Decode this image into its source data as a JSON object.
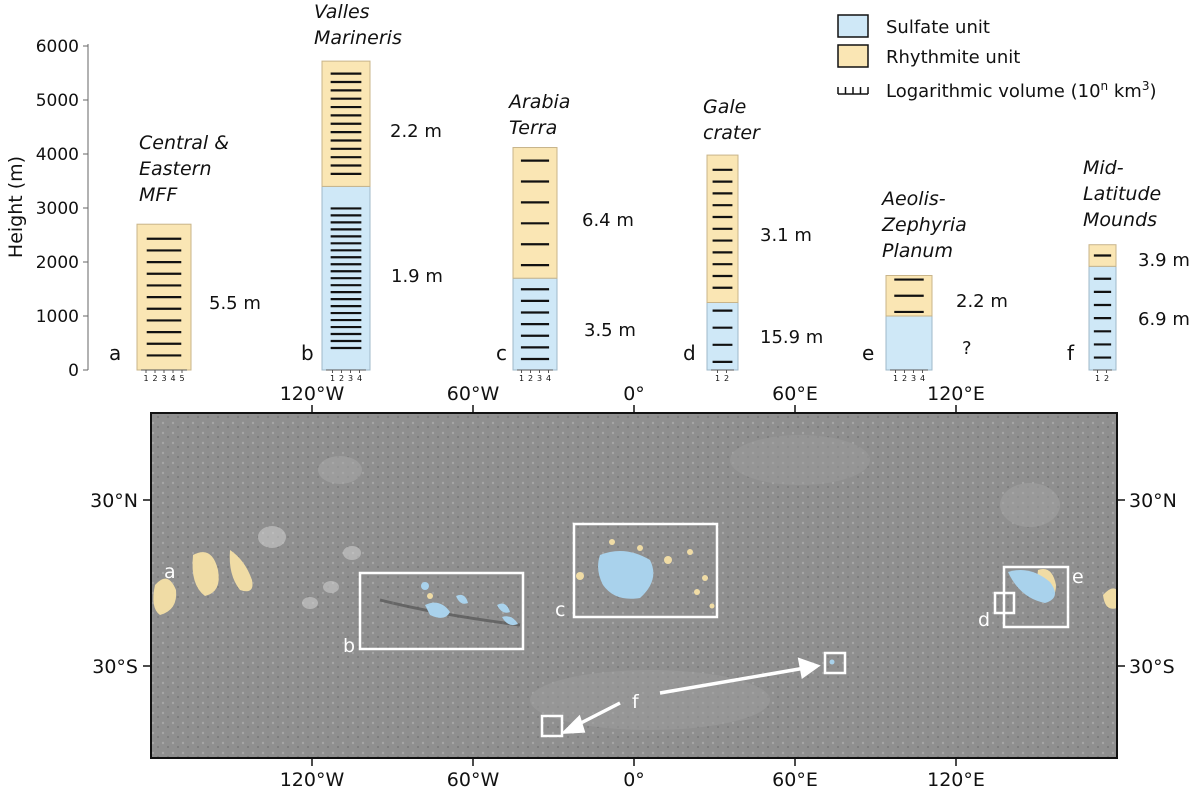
{
  "chart_data": {
    "type": "bar",
    "ylabel": "Height (m)",
    "ylim": [
      0,
      6000
    ],
    "yticks": [
      "0",
      "1000",
      "2000",
      "3000",
      "4000",
      "5000",
      "6000"
    ],
    "colors": {
      "sulfate": "#cfe8f7",
      "rhythmite": "#fae6b4",
      "border": "#9fb8c8"
    },
    "columns": [
      {
        "letter": "a",
        "name": [
          "Central &",
          "Eastern",
          "MFF"
        ],
        "sulfate_top": 0,
        "rhythmite_top": 2700,
        "rhythmite_label": "5.5 m",
        "sulfate_label": "",
        "rhythmite_log_volume": [
          1,
          2,
          3,
          4,
          5,
          6,
          7,
          8,
          9,
          10,
          11
        ],
        "sulfate_log_volume": [],
        "axis_ticks": "1 2 3 4 5"
      },
      {
        "letter": "b",
        "name": [
          "Valles",
          "Marineris"
        ],
        "sulfate_top": 3400,
        "rhythmite_top": 5720,
        "rhythmite_label": "2.2 m",
        "sulfate_label": "1.9 m",
        "rhythmite_log_volume": [
          1,
          2,
          3,
          4,
          5,
          6,
          7,
          8,
          9,
          10,
          11,
          12,
          13
        ],
        "sulfate_log_volume": [
          1,
          2,
          3,
          4,
          5,
          6,
          7,
          8,
          9,
          10,
          11,
          12,
          13,
          14,
          15,
          16,
          17,
          18,
          19,
          20,
          21
        ],
        "axis_ticks": "1 2 3 4"
      },
      {
        "letter": "c",
        "name": [
          "Arabia",
          "Terra"
        ],
        "sulfate_top": 1700,
        "rhythmite_top": 4120,
        "rhythmite_label": "6.4 m",
        "sulfate_label": "3.5 m",
        "rhythmite_log_volume": [
          1,
          2,
          3,
          4,
          5,
          6
        ],
        "sulfate_log_volume": [
          1,
          2,
          3,
          4,
          5,
          6,
          7
        ],
        "axis_ticks": "1 2 3 4"
      },
      {
        "letter": "d",
        "name": [
          "Gale",
          "crater"
        ],
        "sulfate_top": 1250,
        "rhythmite_top": 3980,
        "rhythmite_label": "3.1 m",
        "sulfate_label": "15.9 m",
        "rhythmite_log_volume": [
          1,
          2,
          3,
          4,
          5,
          6,
          7,
          8,
          9,
          10,
          11
        ],
        "sulfate_log_volume": [
          1,
          2,
          3,
          4
        ],
        "axis_ticks": "1 2"
      },
      {
        "letter": "e",
        "name": [
          "Aeolis-",
          "Zephyria",
          "Planum"
        ],
        "sulfate_top": 1000,
        "rhythmite_top": 1750,
        "rhythmite_label": "2.2 m",
        "sulfate_label": "?",
        "rhythmite_log_volume": [
          1,
          2,
          3
        ],
        "sulfate_log_volume": [],
        "axis_ticks": "1 2 3 4"
      },
      {
        "letter": "f",
        "name": [
          "Mid-",
          "Latitude",
          "Mounds"
        ],
        "sulfate_top": 1920,
        "rhythmite_top": 2320,
        "rhythmite_label": "3.9 m",
        "sulfate_label": "6.9 m",
        "rhythmite_log_volume": [
          1
        ],
        "sulfate_log_volume": [
          1,
          2,
          3,
          4,
          5,
          6,
          7
        ],
        "axis_ticks": "1 2"
      }
    ],
    "legend": {
      "position": "top-right",
      "items": [
        {
          "kind": "sulfate",
          "label": "Sulfate unit"
        },
        {
          "kind": "rhythmite",
          "label": "Rhythmite unit"
        },
        {
          "kind": "ticks",
          "label": "Logarithmic volume (10",
          "sup1": "n",
          "mid": " km",
          "sup2": "3",
          "end": ")"
        }
      ]
    }
  },
  "map": {
    "x_ticks": [
      "120°W",
      "60°W",
      "0°",
      "60°E",
      "120°E"
    ],
    "y_ticks": [
      "30°N",
      "30°S"
    ],
    "region_labels": {
      "a": "a",
      "b": "b",
      "c": "c",
      "d": "d",
      "e": "e",
      "f": "f"
    }
  }
}
